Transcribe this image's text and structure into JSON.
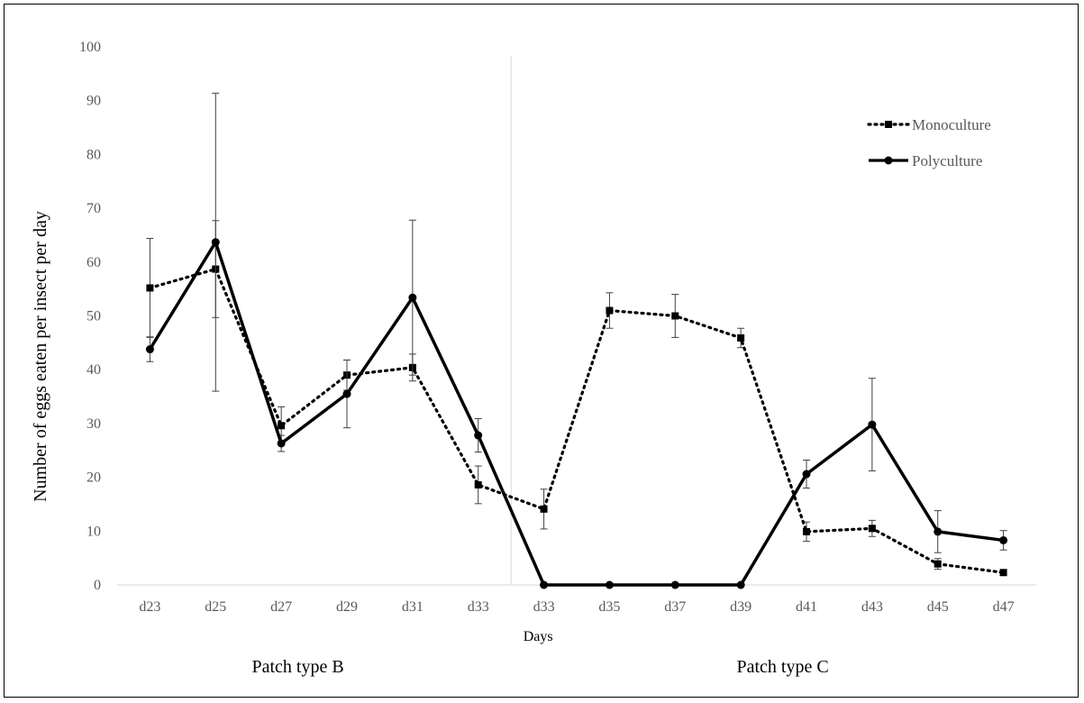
{
  "chart_data": {
    "type": "line",
    "title": "",
    "xlabel": "Days",
    "ylabel": "Number of eggs eaten per insect per day",
    "ylim": [
      0,
      100
    ],
    "ytick_step": 10,
    "grid": false,
    "legend_position": "top-right",
    "categories": [
      "d23",
      "d25",
      "d27",
      "d29",
      "d31",
      "d33",
      "d33",
      "d35",
      "d37",
      "d39",
      "d41",
      "d43",
      "d45",
      "d47"
    ],
    "groups": [
      {
        "label": "Patch type B",
        "start": 0,
        "end": 5
      },
      {
        "label": "Patch type C",
        "start": 6,
        "end": 13
      }
    ],
    "series": [
      {
        "name": "Monoculture",
        "style": "dotted",
        "marker": "square",
        "color": "#000000",
        "values": [
          55.2,
          58.7,
          29.6,
          39.0,
          40.4,
          18.6,
          14.1,
          51.0,
          50.0,
          45.9,
          9.9,
          10.5,
          3.9,
          2.3
        ],
        "error": [
          9.2,
          9.0,
          3.5,
          2.8,
          2.5,
          3.5,
          3.7,
          3.3,
          4.0,
          1.8,
          1.8,
          1.5,
          1.0,
          0.5
        ]
      },
      {
        "name": "Polyculture",
        "style": "solid",
        "marker": "circle",
        "color": "#000000",
        "values": [
          43.8,
          63.7,
          26.3,
          35.5,
          53.4,
          27.8,
          0,
          0,
          0,
          0,
          20.6,
          29.8,
          9.9,
          8.3
        ],
        "error": [
          2.3,
          27.7,
          1.5,
          6.3,
          14.4,
          3.1,
          0,
          0,
          0,
          0,
          2.6,
          8.6,
          3.9,
          1.8
        ]
      }
    ]
  }
}
